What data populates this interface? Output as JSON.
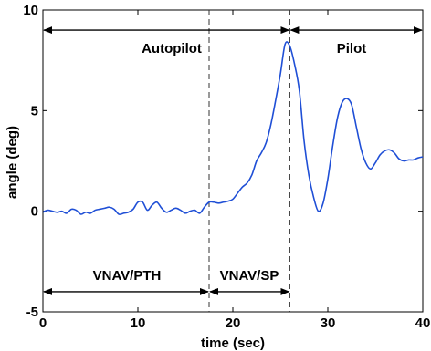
{
  "chart_data": {
    "type": "line",
    "title": "",
    "xlabel": "time (sec)",
    "ylabel": "angle (deg)",
    "xlim": [
      0,
      40
    ],
    "ylim": [
      -5,
      10
    ],
    "grid": false,
    "xticks": [
      "0",
      "10",
      "20",
      "30",
      "40"
    ],
    "yticks": [
      "-5",
      "0",
      "5",
      "10"
    ],
    "xtick_values": [
      0,
      10,
      20,
      30,
      40
    ],
    "ytick_values": [
      -5,
      0,
      5,
      10
    ],
    "line_color": "#1f4fd6",
    "series": [
      {
        "x": [
          0,
          0.5,
          1,
          1.5,
          2,
          2.5,
          3,
          3.5,
          4,
          4.5,
          5,
          5.5,
          6,
          6.5,
          7,
          7.5,
          8,
          8.5,
          9,
          9.5,
          10,
          10.5,
          11,
          11.5,
          12,
          12.5,
          13,
          13.5,
          14,
          14.5,
          15,
          15.5,
          16,
          16.5,
          17,
          17.5,
          18,
          18.5,
          19,
          19.5,
          20,
          20.5,
          21,
          21.5,
          22,
          22.5,
          23,
          23.5,
          24,
          24.5,
          25,
          25.5,
          26,
          26.5,
          27,
          27.5,
          28,
          28.5,
          29,
          29.5,
          30,
          30.5,
          31,
          31.5,
          32,
          32.5,
          33,
          33.5,
          34,
          34.5,
          35,
          35.5,
          36,
          36.5,
          37,
          37.5,
          38,
          38.5,
          39,
          39.5,
          40
        ],
        "y": [
          -0.05,
          0.05,
          0.0,
          -0.05,
          0.0,
          -0.1,
          0.1,
          0.05,
          -0.15,
          -0.05,
          -0.1,
          0.05,
          0.1,
          0.15,
          0.2,
          0.1,
          -0.15,
          -0.1,
          -0.05,
          0.1,
          0.45,
          0.45,
          0.05,
          0.3,
          0.45,
          0.15,
          -0.05,
          0.05,
          0.15,
          0.05,
          -0.1,
          0.0,
          0.05,
          -0.1,
          0.2,
          0.45,
          0.45,
          0.4,
          0.45,
          0.5,
          0.6,
          0.9,
          1.2,
          1.4,
          1.8,
          2.5,
          2.9,
          3.4,
          4.3,
          5.5,
          6.8,
          8.3,
          8.2,
          7.3,
          6.0,
          3.5,
          1.8,
          0.7,
          0.0,
          0.4,
          1.6,
          3.2,
          4.6,
          5.4,
          5.6,
          5.3,
          4.2,
          3.1,
          2.4,
          2.1,
          2.4,
          2.8,
          3.0,
          3.05,
          2.9,
          2.6,
          2.5,
          2.55,
          2.55,
          2.65,
          2.7
        ]
      }
    ],
    "vlines": [
      17.5,
      26
    ],
    "annotations": {
      "autopilot": "Autopilot",
      "pilot": "Pilot",
      "vnav_pth": "VNAV/PTH",
      "vnav_sp": "VNAV/SP"
    },
    "arrows": [
      {
        "from": 0,
        "to": 26,
        "y": 9.0
      },
      {
        "from": 26,
        "to": 40,
        "y": 9.0
      },
      {
        "from": 0,
        "to": 17.5,
        "y": -4.0
      },
      {
        "from": 17.5,
        "to": 26,
        "y": -4.0
      }
    ]
  }
}
